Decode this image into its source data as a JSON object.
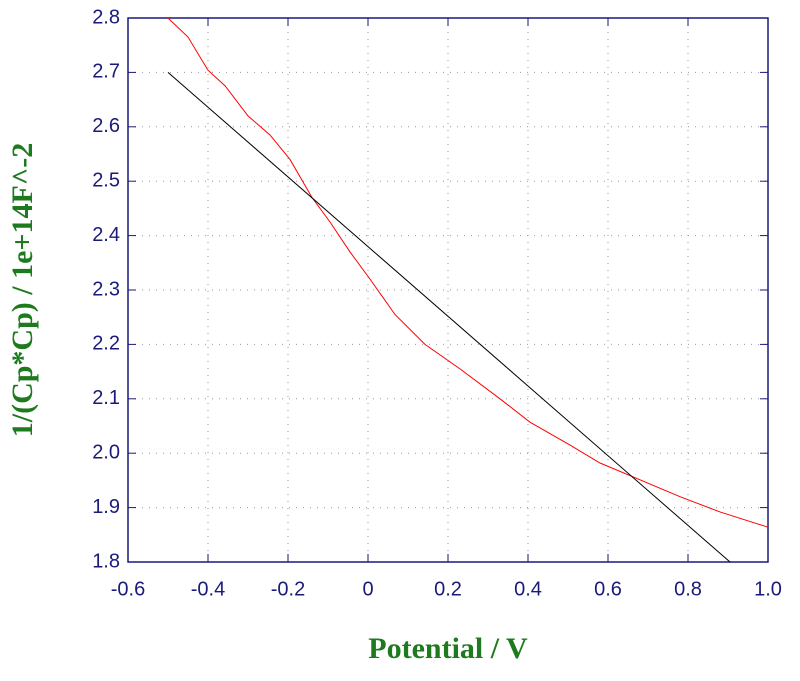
{
  "chart_data": {
    "type": "line",
    "x_label": "Potential / V",
    "y_label": "1/(Cp*Cp) / 1e+14F^-2",
    "xlim": [
      -0.6,
      1.0
    ],
    "ylim": [
      1.8,
      2.8
    ],
    "xticks": [
      -0.6,
      -0.4,
      -0.2,
      0,
      0.2,
      0.4,
      0.6,
      0.8,
      {
        "value": 1.0,
        "label": "1.0"
      }
    ],
    "yticks": [
      1.8,
      1.9,
      {
        "value": 2.0,
        "label": "2.0"
      },
      2.1,
      2.2,
      2.3,
      2.4,
      2.5,
      2.6,
      2.7,
      2.8
    ],
    "grid": true,
    "series": [
      {
        "color": "#ff0000",
        "x": [
          -0.5,
          -0.45,
          -0.4,
          -0.357,
          -0.3,
          -0.245,
          -0.195,
          -0.14,
          -0.095,
          -0.045,
          0.005,
          0.0675,
          0.1425,
          0.23,
          0.33,
          0.405,
          0.505,
          0.58,
          0.6675,
          0.78,
          0.88,
          1.0
        ],
        "values": [
          2.8,
          2.765,
          2.704,
          2.675,
          2.62,
          2.585,
          2.54,
          2.47,
          2.425,
          2.37,
          2.32,
          2.255,
          2.2,
          2.155,
          2.1,
          2.057,
          2.015,
          1.982,
          1.955,
          1.92,
          1.892,
          1.864
        ]
      },
      {
        "color": "#000000",
        "x": [
          -0.5,
          0.905
        ],
        "values": [
          2.7,
          1.8
        ]
      }
    ]
  }
}
